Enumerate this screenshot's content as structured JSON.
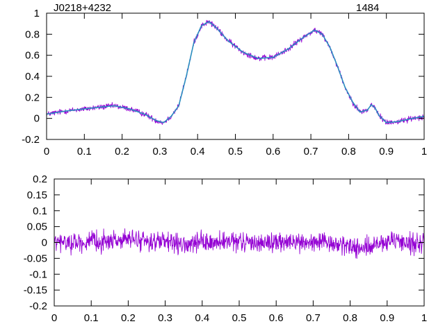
{
  "labels": {
    "top_left": "J0218+4232",
    "top_right": "1484"
  },
  "colors": {
    "data": "#9400d3",
    "model": "#2a8fbf",
    "axis": "#000000"
  },
  "chart_data": [
    {
      "type": "line",
      "panel": "profile",
      "xlim": [
        0,
        1
      ],
      "ylim": [
        -0.2,
        1
      ],
      "x_ticks": [
        0,
        0.1,
        0.2,
        0.3,
        0.4,
        0.5,
        0.6,
        0.7,
        0.8,
        0.9,
        1
      ],
      "x_tick_labels": [
        "0",
        "0.1",
        "0.2",
        "0.3",
        "0.4",
        "0.5",
        "0.6",
        "0.7",
        "0.8",
        "0.9",
        "1"
      ],
      "y_ticks": [
        -0.2,
        0,
        0.2,
        0.4,
        0.6,
        0.8,
        1
      ],
      "y_tick_labels": [
        "-0.2",
        "0",
        "0.2",
        "0.4",
        "0.6",
        "0.8",
        "1"
      ],
      "grid": false,
      "series": [
        {
          "role": "data",
          "noise_amplitude": 0.04,
          "x": [
            0,
            0.05,
            0.1,
            0.15,
            0.18,
            0.22,
            0.26,
            0.29,
            0.31,
            0.33,
            0.35,
            0.37,
            0.39,
            0.41,
            0.43,
            0.45,
            0.48,
            0.52,
            0.56,
            0.6,
            0.64,
            0.68,
            0.71,
            0.73,
            0.75,
            0.77,
            0.79,
            0.81,
            0.83,
            0.85,
            0.86,
            0.87,
            0.88,
            0.9,
            0.93,
            0.97,
            1
          ],
          "y": [
            0.04,
            0.07,
            0.09,
            0.11,
            0.12,
            0.09,
            0.04,
            -0.02,
            -0.04,
            0.02,
            0.12,
            0.4,
            0.72,
            0.88,
            0.92,
            0.86,
            0.74,
            0.63,
            0.57,
            0.58,
            0.66,
            0.77,
            0.84,
            0.8,
            0.68,
            0.5,
            0.3,
            0.16,
            0.06,
            0.08,
            0.13,
            0.1,
            0.03,
            -0.04,
            -0.03,
            0.0,
            0.02
          ]
        },
        {
          "role": "model",
          "x": [
            0,
            0.05,
            0.1,
            0.15,
            0.18,
            0.22,
            0.26,
            0.29,
            0.31,
            0.33,
            0.35,
            0.37,
            0.39,
            0.41,
            0.43,
            0.45,
            0.48,
            0.52,
            0.56,
            0.6,
            0.64,
            0.68,
            0.71,
            0.73,
            0.75,
            0.77,
            0.79,
            0.81,
            0.83,
            0.85,
            0.86,
            0.87,
            0.88,
            0.9,
            0.93,
            0.97,
            1
          ],
          "y": [
            0.04,
            0.07,
            0.09,
            0.11,
            0.12,
            0.09,
            0.04,
            -0.02,
            -0.04,
            0.02,
            0.12,
            0.4,
            0.72,
            0.88,
            0.92,
            0.86,
            0.74,
            0.63,
            0.57,
            0.58,
            0.66,
            0.77,
            0.84,
            0.8,
            0.68,
            0.5,
            0.3,
            0.16,
            0.06,
            0.08,
            0.13,
            0.1,
            0.03,
            -0.04,
            -0.03,
            0.0,
            0.02
          ]
        }
      ]
    },
    {
      "type": "line",
      "panel": "residuals",
      "xlim": [
        0,
        1
      ],
      "ylim": [
        -0.2,
        0.2
      ],
      "x_ticks": [
        0,
        0.1,
        0.2,
        0.3,
        0.4,
        0.5,
        0.6,
        0.7,
        0.8,
        0.9,
        1
      ],
      "x_tick_labels": [
        "0",
        "0.1",
        "0.2",
        "0.3",
        "0.4",
        "0.5",
        "0.6",
        "0.7",
        "0.8",
        "0.9",
        "1"
      ],
      "y_ticks": [
        -0.2,
        -0.15,
        -0.1,
        -0.05,
        0,
        0.05,
        0.1,
        0.15,
        0.2
      ],
      "y_tick_labels": [
        "-0.2",
        "-0.15",
        "-0.1",
        "-0.05",
        "0",
        "0.05",
        "0.1",
        "0.15",
        "0.2"
      ],
      "grid": false,
      "series": [
        {
          "role": "residual",
          "noise_amplitude": 0.045,
          "x": [
            0,
            0.1,
            0.2,
            0.3,
            0.35,
            0.4,
            0.5,
            0.6,
            0.7,
            0.8,
            0.83,
            0.9,
            1
          ],
          "y": [
            0,
            0,
            0.01,
            0,
            -0.01,
            0,
            0,
            0,
            0,
            -0.01,
            -0.02,
            0,
            0
          ]
        }
      ]
    }
  ]
}
